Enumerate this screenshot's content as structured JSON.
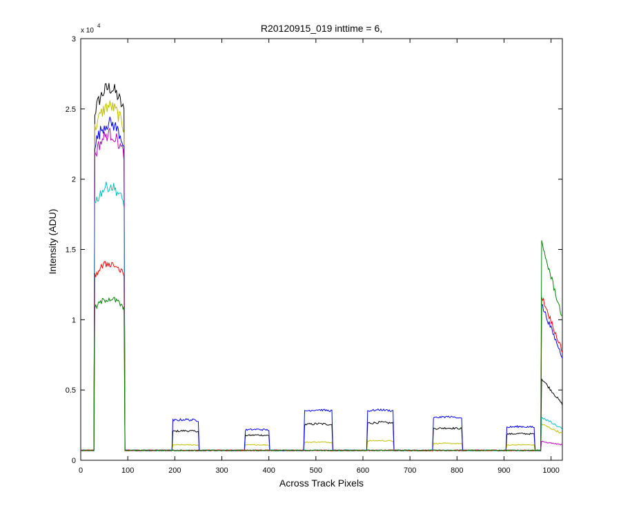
{
  "chart_data": {
    "type": "line",
    "title": "R20120915_019 inttime = 6,",
    "xlabel": "Across Track Pixels",
    "ylabel": "Intensity (ADU)",
    "y_exponent_label": "x 10",
    "y_exponent_power": "4",
    "xlim": [
      0,
      1024
    ],
    "ylim": [
      0,
      30000
    ],
    "x_ticks": [
      0,
      100,
      200,
      300,
      400,
      500,
      600,
      700,
      800,
      900,
      1000
    ],
    "y_ticks": [
      0,
      5000,
      10000,
      15000,
      20000,
      25000,
      30000
    ],
    "x_tick_labels": [
      "0",
      "100",
      "200",
      "300",
      "400",
      "500",
      "600",
      "700",
      "800",
      "900",
      "1000"
    ],
    "y_tick_labels": [
      "0",
      "0.5",
      "1",
      "1.5",
      "2",
      "2.5",
      "3"
    ],
    "grid": false,
    "baseline": 700,
    "series": [
      {
        "color": "#000000",
        "profile": [
          {
            "x": [
              30,
              92
            ],
            "y": 26500
          },
          {
            "x": [
              195,
              250
            ],
            "y": 2100
          },
          {
            "x": [
              350,
              400
            ],
            "y": 1800
          },
          {
            "x": [
              475,
              535
            ],
            "y": 2600
          },
          {
            "x": [
              610,
              665
            ],
            "y": 2700
          },
          {
            "x": [
              750,
              810
            ],
            "y": 2300
          },
          {
            "x": [
              905,
              965
            ],
            "y": 1900
          },
          {
            "x": [
              980,
              1024
            ],
            "y": 4800
          }
        ]
      },
      {
        "color": "#BFBF00",
        "profile": [
          {
            "x": [
              30,
              92
            ],
            "y": 25200
          },
          {
            "x": [
              195,
              250
            ],
            "y": 1100
          },
          {
            "x": [
              350,
              400
            ],
            "y": 1100
          },
          {
            "x": [
              475,
              535
            ],
            "y": 1300
          },
          {
            "x": [
              610,
              665
            ],
            "y": 1400
          },
          {
            "x": [
              750,
              810
            ],
            "y": 1200
          },
          {
            "x": [
              905,
              965
            ],
            "y": 1100
          },
          {
            "x": [
              980,
              1024
            ],
            "y": 2200
          }
        ]
      },
      {
        "color": "#0000FF",
        "profile": [
          {
            "x": [
              30,
              92
            ],
            "y": 24000
          },
          {
            "x": [
              195,
              250
            ],
            "y": 2900
          },
          {
            "x": [
              350,
              400
            ],
            "y": 2200
          },
          {
            "x": [
              475,
              535
            ],
            "y": 3600
          },
          {
            "x": [
              610,
              665
            ],
            "y": 3600
          },
          {
            "x": [
              750,
              810
            ],
            "y": 3100
          },
          {
            "x": [
              905,
              965
            ],
            "y": 2400
          },
          {
            "x": [
              980,
              1024
            ],
            "y": 9000
          }
        ]
      },
      {
        "color": "#BF00BF",
        "profile": [
          {
            "x": [
              30,
              92
            ],
            "y": 23200
          },
          {
            "x": [
              980,
              1024
            ],
            "y": 1200
          }
        ]
      },
      {
        "color": "#00BFBF",
        "profile": [
          {
            "x": [
              30,
              92
            ],
            "y": 19500
          },
          {
            "x": [
              980,
              1024
            ],
            "y": 2600
          }
        ]
      },
      {
        "color": "#FF0000",
        "profile": [
          {
            "x": [
              30,
              92
            ],
            "y": 14000
          },
          {
            "x": [
              980,
              1024
            ],
            "y": 9500
          }
        ]
      },
      {
        "color": "#008000",
        "profile": [
          {
            "x": [
              30,
              92
            ],
            "y": 11500
          },
          {
            "x": [
              980,
              1024
            ],
            "y": 12500
          }
        ]
      }
    ]
  }
}
